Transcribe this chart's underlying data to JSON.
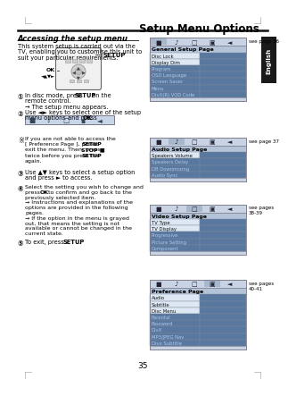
{
  "title": "Setup Menu Options",
  "page_num": "35",
  "section_title": "Accessing the setup menu",
  "section_body_lines": [
    "This system setup is carried out via the",
    "TV, enabling you to customise this unit to",
    "suit your particular requirements."
  ],
  "step1_lines": [
    "In disc mode, press ",
    "SETUP",
    " on the",
    "remote control.",
    "→ The setup menu appears."
  ],
  "step2_line1": "Use ◄► keys to select one of the setup",
  "step2_line2_pre": "menu options and press ",
  "step2_line2_bold": "OK",
  "step2_line2_post": ".",
  "note_lines": [
    "If you are not able to access the",
    "[ Preference Page ], press SETUP to",
    "exit the menu. Then, press STOP ■",
    "twice before you press the SETUP",
    "again."
  ],
  "step3_line1": "Use ▲▼ keys to select a setup option",
  "step3_line2": "and press ► to access.",
  "step4_lines": [
    "Select the setting you wish to change and",
    "press OK to confirm and go back to the",
    "previously selected item.",
    "→ Instructions and explanations of the",
    "options are provided in the following",
    "pages.",
    "→ If the option in the menu is grayed",
    "out, that means the setting is not",
    "available or cannot be changed in the",
    "current state."
  ],
  "step5_pre": "To exit, press ",
  "step5_bold": "SETUP",
  "step5_post": ".",
  "panel1_title": "General Setup Page",
  "panel1_items": [
    "Disc Lock",
    "Display Dim",
    "Program",
    "OSD Language",
    "Screen Saver",
    "Menu",
    "DivX(R) VOD Code"
  ],
  "panel1_ref": "see page 36",
  "panel1_light_count": 2,
  "panel2_title": "Audio Setup Page",
  "panel2_items": [
    "Speakers Volume",
    "Speakers Delay",
    "DB Downmixing",
    "Audio Sync"
  ],
  "panel2_ref": "see page 37",
  "panel2_light_count": 1,
  "panel3_title": "Video Setup Page",
  "panel3_items": [
    "TV Type",
    "TV Display",
    "Progressive",
    "Picture Setting",
    "Component"
  ],
  "panel3_ref": "see pages\n38-39",
  "panel3_light_count": 2,
  "panel4_title": "Preference Page",
  "panel4_items": [
    "Audio",
    "Subtitle",
    "Disc Menu",
    "Parental",
    "Password",
    "DivX",
    "MP3/JPEG Nav",
    "Divx Subtitle"
  ],
  "panel4_ref": "see pages\n40-41",
  "panel4_light_count": 3,
  "bg_color": "#ffffff",
  "hr_color": "#222222",
  "panel_tab_bg": "#c8d4e4",
  "panel_title_bg": "#b0bfd4",
  "panel_light_bg": "#dce8f4",
  "panel_dark_bg": "#6080a8",
  "panel_border": "#808090",
  "english_bg": "#1a1a1a"
}
